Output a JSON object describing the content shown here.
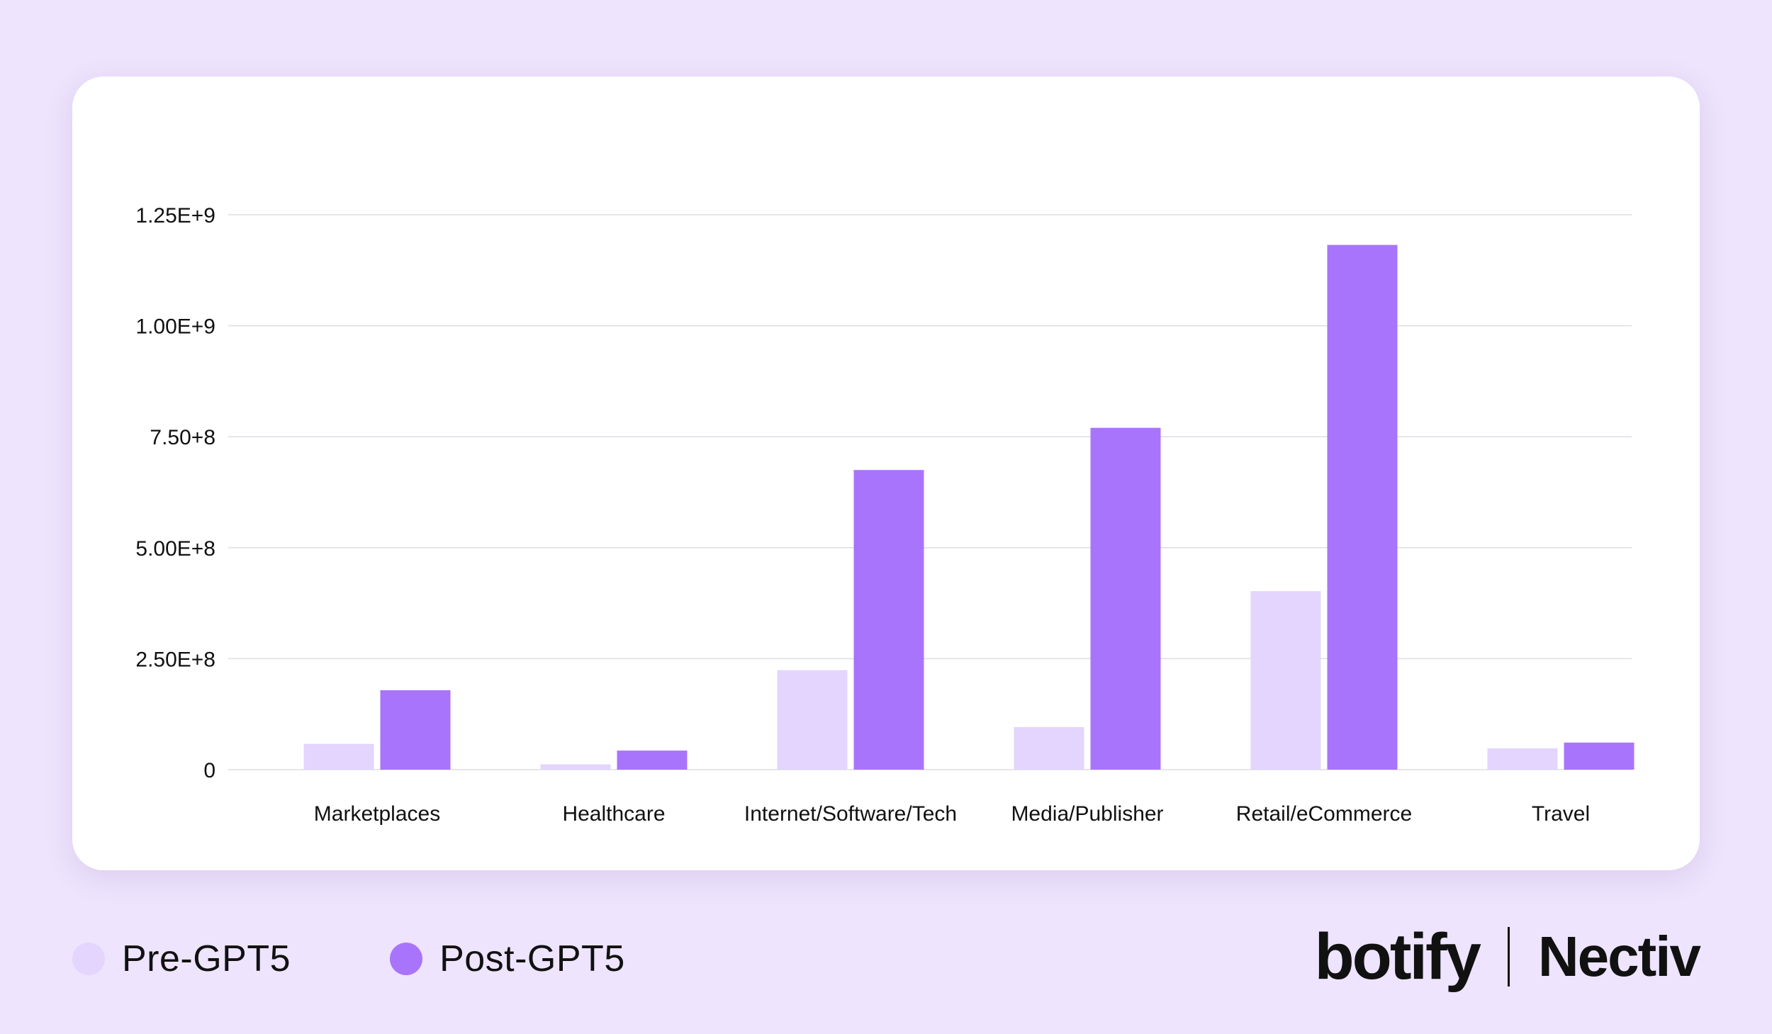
{
  "chart_data": {
    "type": "bar",
    "categories": [
      "Marketplaces",
      "Healthcare",
      "Internet/Software/Tech",
      "Media/Publisher",
      "Retail/eCommerce",
      "Travel"
    ],
    "series": [
      {
        "name": "Pre-GPT5",
        "color": "#E3D5FD",
        "values": [
          58000000,
          12000000,
          224000000,
          96000000,
          402000000,
          48000000
        ]
      },
      {
        "name": "Post-GPT5",
        "color": "#A974FC",
        "values": [
          179000000,
          43000000,
          675000000,
          770000000,
          1182000000,
          61000000
        ]
      }
    ],
    "ylim": [
      0,
      1250000000
    ],
    "yticks": [
      0,
      250000000,
      500000000,
      750000000,
      1000000000,
      1250000000
    ],
    "ytick_labels": [
      "0",
      "2.50E+8",
      "5.00E+8",
      "7.50+8",
      "1.00E+9",
      "1.25E+9"
    ],
    "grid": true,
    "legend_position": "bottom-left",
    "xlabel": "",
    "ylabel": ""
  },
  "legend": {
    "pre_label": "Pre-GPT5",
    "post_label": "Post-GPT5",
    "pre_color": "#E3D5FD",
    "post_color": "#A974FC"
  },
  "logos": {
    "botify": "botify",
    "nectiv": "Nectiv"
  },
  "colors": {
    "background": "#EEE4FD",
    "card": "#FFFFFF",
    "grid": "#DDDDE3",
    "text": "#111111"
  }
}
